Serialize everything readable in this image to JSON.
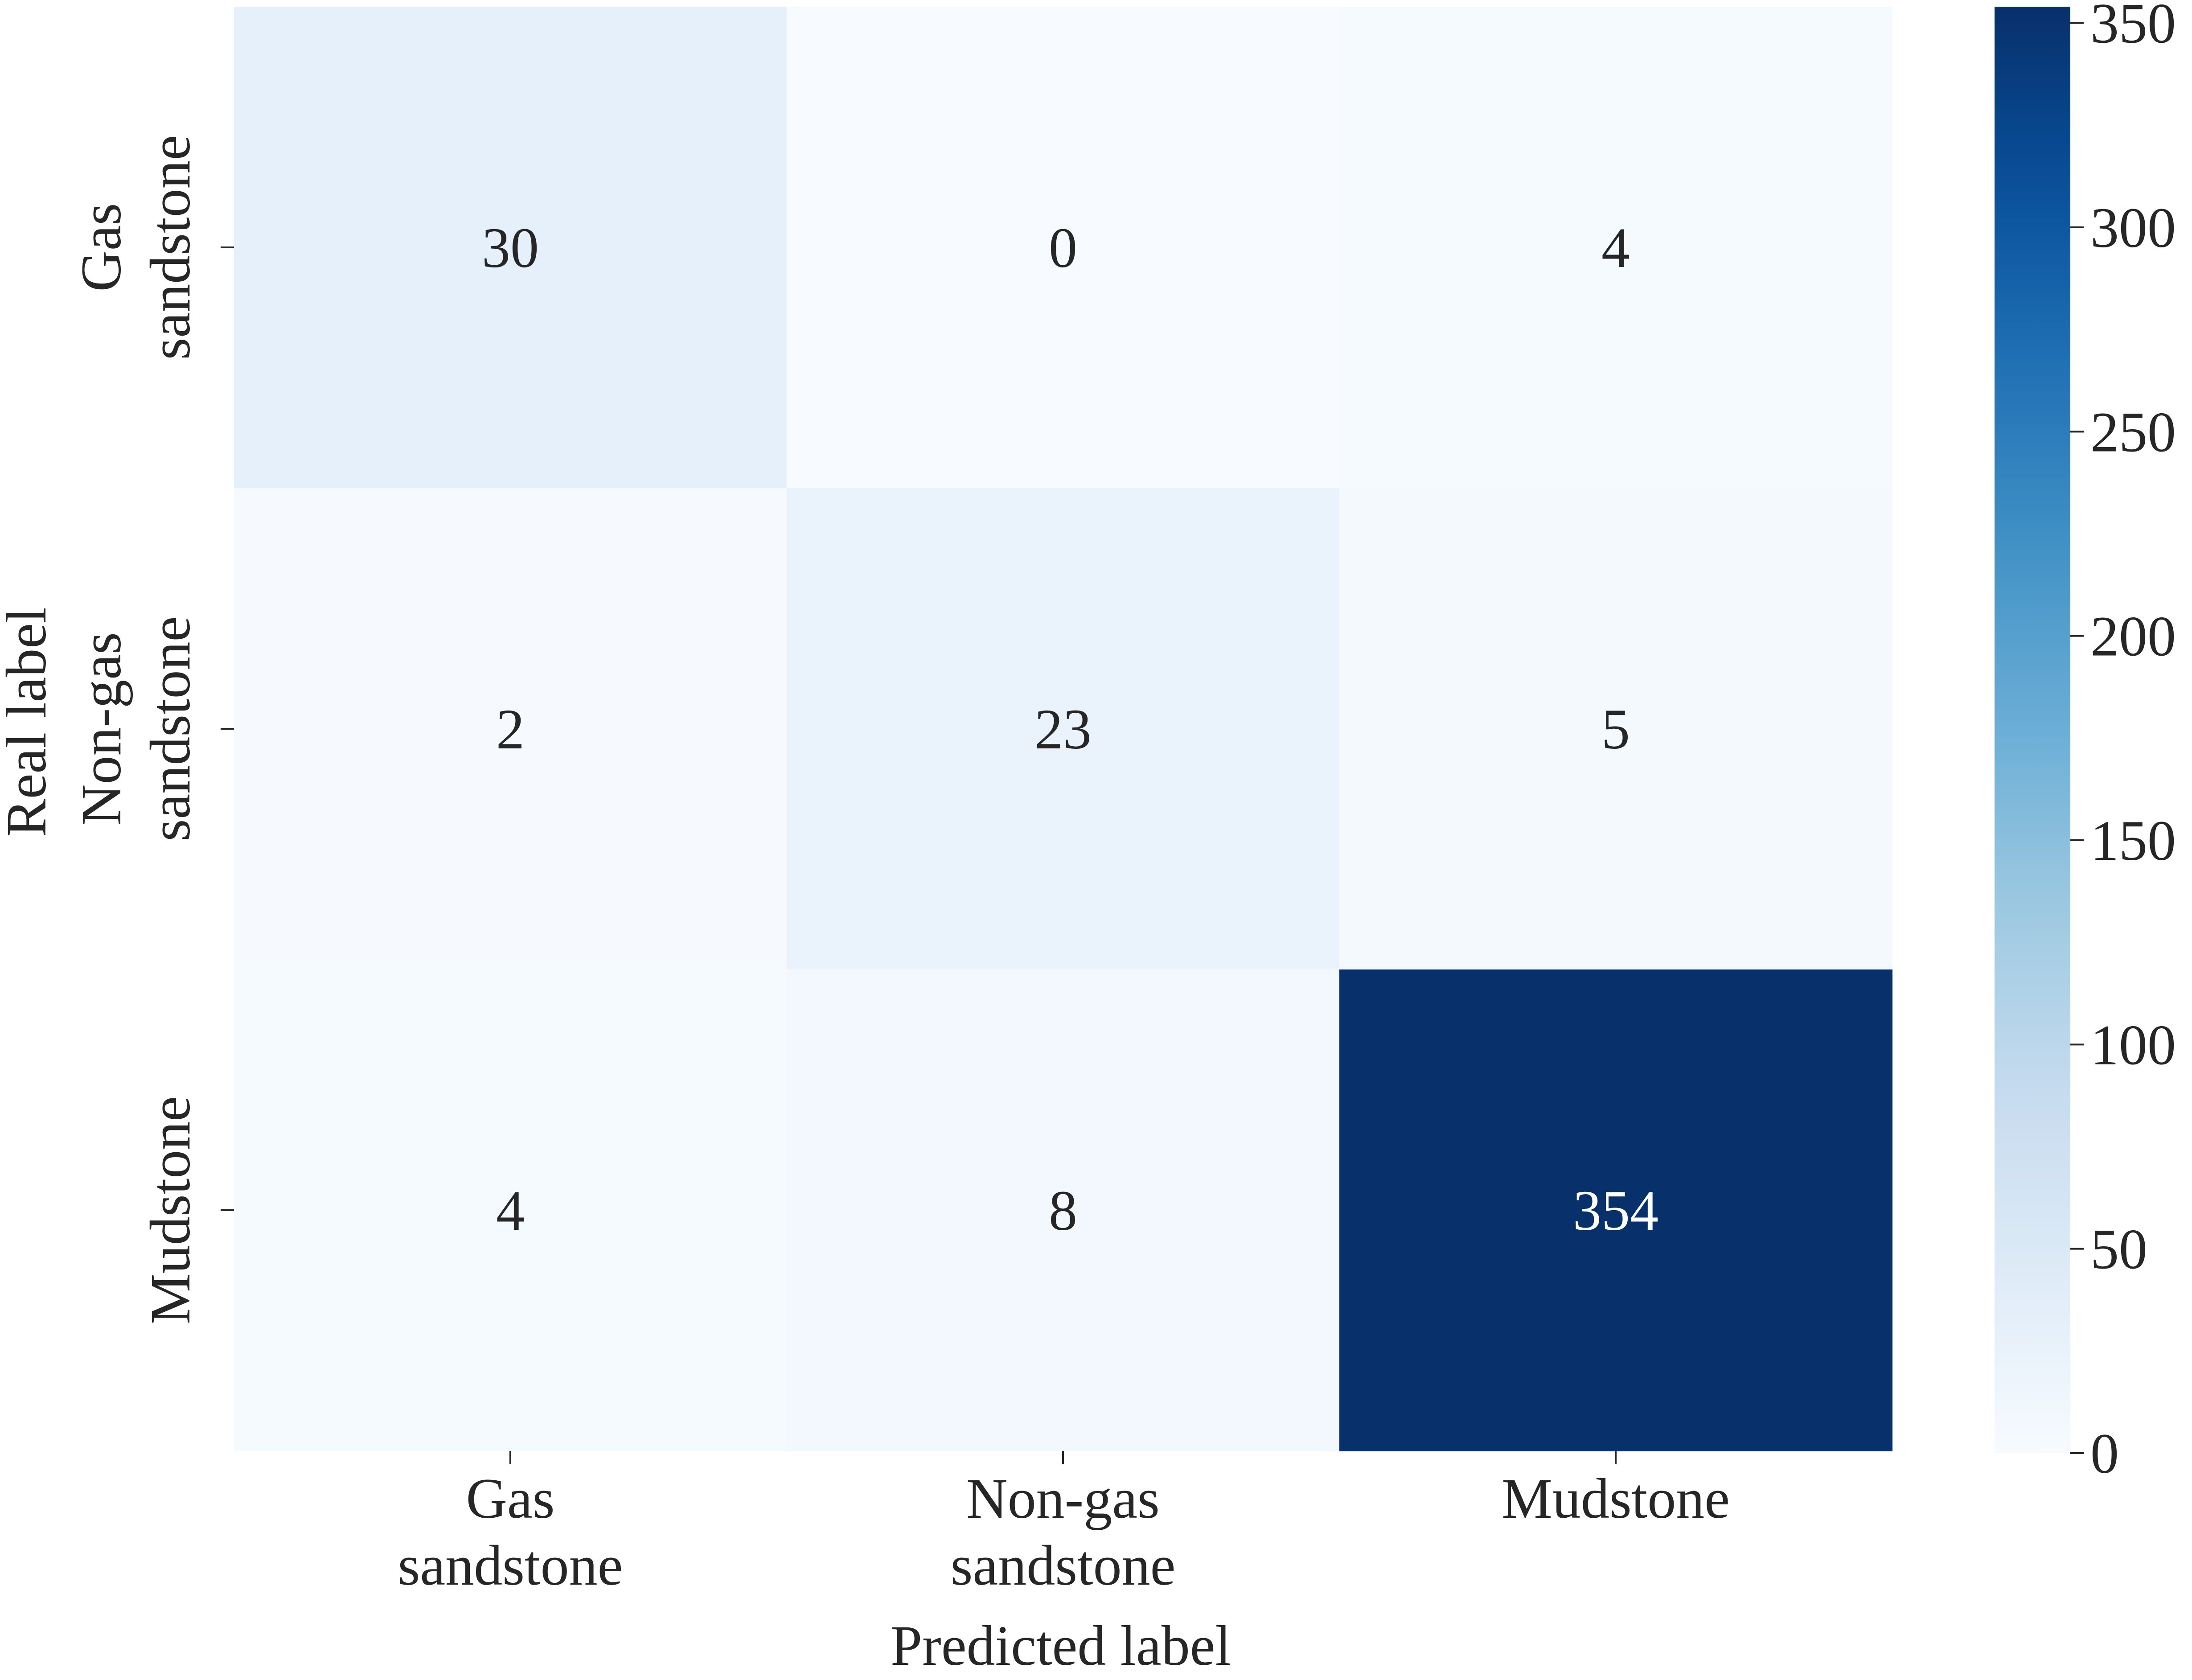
{
  "chart_data": {
    "type": "heatmap",
    "xlabel": "Predicted label",
    "ylabel": "Real label",
    "x_categories": [
      [
        "Gas",
        "sandstone"
      ],
      [
        "Non-gas",
        "sandstone"
      ],
      [
        "Mudstone"
      ]
    ],
    "y_categories": [
      [
        "Gas",
        "sandstone"
      ],
      [
        "Non-gas",
        "sandstone"
      ],
      [
        "Mudstone"
      ]
    ],
    "values": [
      [
        30,
        0,
        4
      ],
      [
        2,
        23,
        5
      ],
      [
        4,
        8,
        354
      ]
    ],
    "colorbar": {
      "colormap": "Blues",
      "vmin": 0,
      "vmax": 354,
      "ticks": [
        0,
        50,
        100,
        150,
        200,
        250,
        300,
        350
      ]
    },
    "colors": {
      "low": "#f7fbff",
      "high": "#08306b",
      "annotation_dark": "#262626",
      "annotation_light": "#ffffff"
    }
  }
}
